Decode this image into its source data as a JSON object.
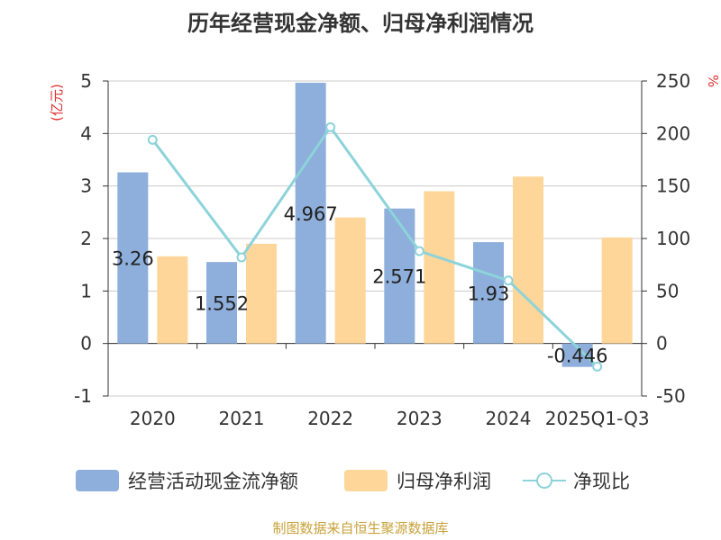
{
  "title": "历年经营现金净额、归母净利润情况",
  "source": "制图数据来自恒生聚源数据库",
  "colors": {
    "cash": "#8eaedb",
    "profit": "#ffd699",
    "ratio": "#8dd3da",
    "axisLabel": "#e03030"
  },
  "chart_data": {
    "type": "bar",
    "title": "历年经营现金净额、归母净利润情况",
    "categories": [
      "2020",
      "2021",
      "2022",
      "2023",
      "2024",
      "2025Q1-Q3"
    ],
    "y_left": {
      "label": "(亿元)",
      "ticks": [
        "5",
        "4",
        "3",
        "2",
        "1",
        "0",
        "-1"
      ],
      "range": [
        -1,
        5
      ]
    },
    "y_right": {
      "label": "%",
      "ticks": [
        "250",
        "200",
        "150",
        "100",
        "50",
        "0",
        "-50"
      ],
      "range": [
        -50,
        250
      ]
    },
    "grid": true,
    "legend_position": "bottom",
    "series": [
      {
        "name": "经营活动现金流净额",
        "kind": "bar",
        "axis": "left",
        "values": [
          3.26,
          1.552,
          4.967,
          2.571,
          1.93,
          -0.446
        ],
        "labels": [
          "3.26",
          "1.552",
          "4.967",
          "2.571",
          "1.93",
          "-0.446"
        ]
      },
      {
        "name": "归母净利润",
        "kind": "bar",
        "axis": "left",
        "values": [
          1.66,
          1.9,
          2.4,
          2.9,
          3.18,
          2.02
        ]
      },
      {
        "name": "净现比",
        "kind": "line",
        "axis": "right",
        "values": [
          194,
          82,
          206,
          88,
          60,
          -22
        ]
      }
    ]
  }
}
